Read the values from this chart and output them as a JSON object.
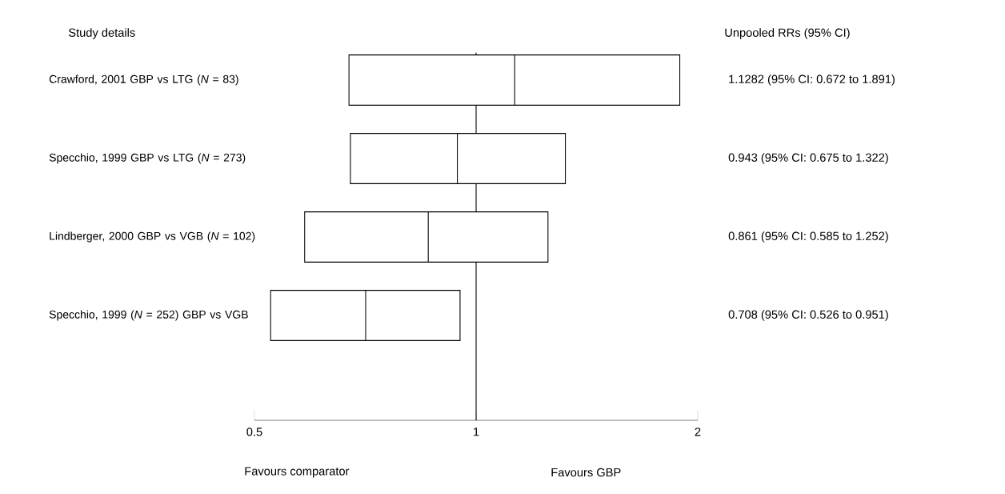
{
  "chart_data": {
    "type": "box",
    "orientation": "horizontal",
    "log": "x",
    "color": "#000000",
    "categories": [
      "Crawford, 2001 GBP vs LTG (*N* = 83)",
      "Specchio, 1999 GBP vs LTG (*N* = 273)",
      "Lindberger, 2000 GBP vs VGB (*N* = 102)",
      "Specchio, 1999 (*N* = 252) GBP vs VGB"
    ],
    "boxes": [
      {
        "low": 0.672,
        "q1": 0.672,
        "median": 1.1282,
        "q3": 1.891,
        "high": 1.891
      },
      {
        "low": 0.675,
        "q1": 0.675,
        "median": 0.943,
        "q3": 1.322,
        "high": 1.322
      },
      {
        "low": 0.585,
        "q1": 0.585,
        "median": 0.861,
        "q3": 1.252,
        "high": 1.252
      },
      {
        "low": 0.526,
        "q1": 0.526,
        "median": 0.708,
        "q3": 0.951,
        "high": 0.951
      }
    ],
    "value_labels": [
      "1.1282 (95% CI: 0.672 to 1.891)",
      "0.943 (95% CI: 0.675 to 1.322)",
      "0.861 (95% CI: 0.585 to 1.252)",
      "0.708 (95% CI: 0.526 to 0.951)"
    ],
    "xlim": [
      0.5,
      2
    ],
    "xticks": [
      0.5,
      1,
      2
    ],
    "ref_lines": [
      {
        "axis": "x",
        "value": 1
      }
    ],
    "annotations": [
      "Study details",
      "Unpooled RRs (95% CI)",
      "Favours comparator",
      "Favours GBP"
    ]
  }
}
